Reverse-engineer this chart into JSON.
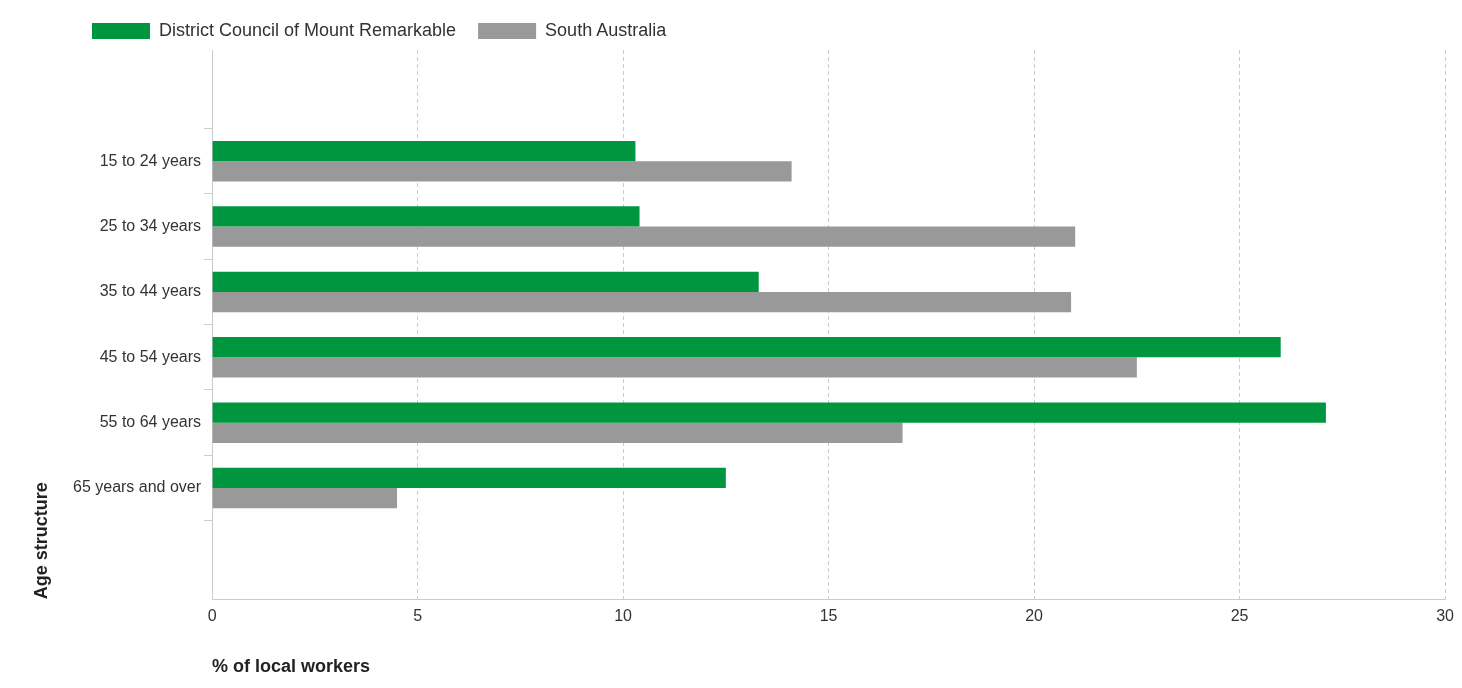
{
  "chart_data": {
    "type": "bar",
    "orientation": "horizontal",
    "xlabel": "% of local workers",
    "ylabel": "Age structure",
    "categories": [
      "15 to 24 years",
      "25 to 34 years",
      "35 to 44 years",
      "45 to 54 years",
      "55 to 64 years",
      "65 years and over"
    ],
    "series": [
      {
        "name": "District Council of Mount Remarkable",
        "color": "#00963f",
        "values": [
          10.3,
          10.4,
          13.3,
          26.0,
          27.1,
          12.5
        ]
      },
      {
        "name": "South Australia",
        "color": "#999999",
        "values": [
          14.1,
          21.0,
          20.9,
          22.5,
          16.8,
          4.5
        ]
      }
    ],
    "xlim": [
      0,
      30
    ],
    "xticks": [
      0,
      5,
      10,
      15,
      20,
      25,
      30
    ],
    "grid": "x",
    "legend": "top left"
  }
}
